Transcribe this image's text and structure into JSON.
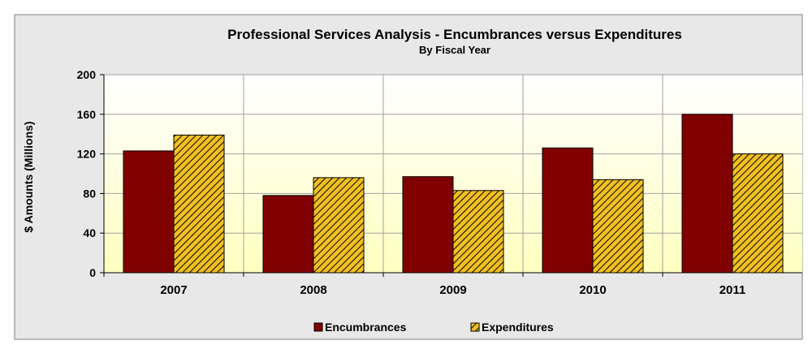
{
  "chart_data": {
    "type": "bar",
    "title": "Professional Services Analysis - Encumbrances versus Expenditures",
    "subtitle": "By Fiscal Year",
    "ylabel": "$ Amounts (Millions)",
    "xlabel": "",
    "categories": [
      "2007",
      "2008",
      "2009",
      "2010",
      "2011"
    ],
    "ylim": [
      0,
      200
    ],
    "yticks": [
      "0",
      "40",
      "80",
      "120",
      "160",
      "200"
    ],
    "grid": true,
    "legend_position": "bottom",
    "series": [
      {
        "name": "Encumbrances",
        "values": [
          123,
          78,
          97,
          126,
          160
        ],
        "color": "#800000",
        "pattern": "solid"
      },
      {
        "name": "Expenditures",
        "values": [
          139,
          96,
          83,
          94,
          120
        ],
        "color": "#f0c020",
        "pattern": "diagonal-hatch"
      }
    ]
  },
  "colors": {
    "background": "#e8e8e8",
    "plot_top": "#ffffff",
    "plot_bottom": "#ffffc0",
    "gridline": "#a0a0a0"
  }
}
